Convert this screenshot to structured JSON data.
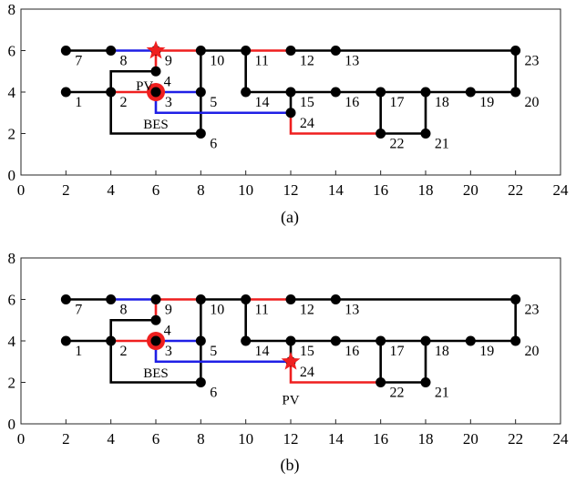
{
  "colors": {
    "black": "#000000",
    "blue": "#1f1fe6",
    "red": "#ef1f1f",
    "node": "#000000",
    "marker": "#ef1f1f"
  },
  "axis": {
    "x_ticks": [
      "0",
      "2",
      "4",
      "6",
      "8",
      "10",
      "12",
      "14",
      "16",
      "18",
      "20",
      "22",
      "24"
    ],
    "y_ticks": [
      "0",
      "2",
      "4",
      "6",
      "8"
    ],
    "xlim": [
      0,
      24
    ],
    "ylim": [
      0,
      8
    ]
  },
  "panels": [
    {
      "caption": "(a)",
      "nodes": [
        {
          "id": "1",
          "x": 2,
          "y": 4,
          "lx": 2.4,
          "ly": 3.55
        },
        {
          "id": "2",
          "x": 4,
          "y": 4,
          "lx": 4.4,
          "ly": 3.55
        },
        {
          "id": "3",
          "x": 6,
          "y": 4,
          "lx": 6.4,
          "ly": 3.55
        },
        {
          "id": "4",
          "x": 6,
          "y": 5,
          "lx": 6.35,
          "ly": 4.55
        },
        {
          "id": "5",
          "x": 8,
          "y": 4,
          "lx": 8.4,
          "ly": 3.55
        },
        {
          "id": "6",
          "x": 8,
          "y": 2,
          "lx": 8.4,
          "ly": 1.55
        },
        {
          "id": "7",
          "x": 2,
          "y": 6,
          "lx": 2.4,
          "ly": 5.55
        },
        {
          "id": "8",
          "x": 4,
          "y": 6,
          "lx": 4.4,
          "ly": 5.55
        },
        {
          "id": "9",
          "x": 6,
          "y": 6,
          "lx": 6.4,
          "ly": 5.55
        },
        {
          "id": "10",
          "x": 8,
          "y": 6,
          "lx": 8.4,
          "ly": 5.55
        },
        {
          "id": "11",
          "x": 10,
          "y": 6,
          "lx": 10.4,
          "ly": 5.55
        },
        {
          "id": "12",
          "x": 12,
          "y": 6,
          "lx": 12.4,
          "ly": 5.55
        },
        {
          "id": "13",
          "x": 14,
          "y": 6,
          "lx": 14.4,
          "ly": 5.55
        },
        {
          "id": "14",
          "x": 10,
          "y": 4,
          "lx": 10.4,
          "ly": 3.55
        },
        {
          "id": "15",
          "x": 12,
          "y": 4,
          "lx": 12.4,
          "ly": 3.55
        },
        {
          "id": "16",
          "x": 14,
          "y": 4,
          "lx": 14.4,
          "ly": 3.55
        },
        {
          "id": "17",
          "x": 16,
          "y": 4,
          "lx": 16.4,
          "ly": 3.55
        },
        {
          "id": "18",
          "x": 18,
          "y": 4,
          "lx": 18.4,
          "ly": 3.55
        },
        {
          "id": "19",
          "x": 20,
          "y": 4,
          "lx": 20.4,
          "ly": 3.55
        },
        {
          "id": "20",
          "x": 22,
          "y": 4,
          "lx": 22.4,
          "ly": 3.55
        },
        {
          "id": "21",
          "x": 18,
          "y": 2,
          "lx": 18.4,
          "ly": 1.55
        },
        {
          "id": "22",
          "x": 16,
          "y": 2,
          "lx": 16.4,
          "ly": 1.55
        },
        {
          "id": "23",
          "x": 22,
          "y": 6,
          "lx": 22.4,
          "ly": 5.55
        },
        {
          "id": "24",
          "x": 12,
          "y": 3,
          "lx": 12.4,
          "ly": 2.55
        }
      ],
      "edges": [
        {
          "color": "black",
          "pts": [
            [
              2,
              6
            ],
            [
              4,
              6
            ]
          ]
        },
        {
          "color": "blue",
          "pts": [
            [
              4,
              6
            ],
            [
              6,
              6
            ]
          ]
        },
        {
          "color": "red",
          "pts": [
            [
              6,
              6
            ],
            [
              8,
              6
            ]
          ]
        },
        {
          "color": "black",
          "pts": [
            [
              8,
              6
            ],
            [
              10,
              6
            ]
          ]
        },
        {
          "color": "red",
          "pts": [
            [
              10,
              6
            ],
            [
              12,
              6
            ]
          ]
        },
        {
          "color": "black",
          "pts": [
            [
              12,
              6
            ],
            [
              22,
              6
            ]
          ]
        },
        {
          "color": "black",
          "pts": [
            [
              22,
              6
            ],
            [
              22,
              4
            ]
          ]
        },
        {
          "color": "black",
          "pts": [
            [
              2,
              4
            ],
            [
              4,
              4
            ]
          ]
        },
        {
          "color": "red",
          "pts": [
            [
              4,
              4
            ],
            [
              6,
              4
            ]
          ]
        },
        {
          "color": "blue",
          "pts": [
            [
              6,
              4
            ],
            [
              8,
              4
            ]
          ]
        },
        {
          "color": "black",
          "pts": [
            [
              4,
              4
            ],
            [
              4,
              5
            ],
            [
              6,
              5
            ]
          ]
        },
        {
          "color": "red",
          "pts": [
            [
              6,
              5
            ],
            [
              6,
              6
            ]
          ]
        },
        {
          "color": "black",
          "pts": [
            [
              4,
              4
            ],
            [
              4,
              2
            ],
            [
              8,
              2
            ]
          ]
        },
        {
          "color": "black",
          "pts": [
            [
              8,
              2
            ],
            [
              8,
              6
            ]
          ]
        },
        {
          "color": "blue",
          "pts": [
            [
              6,
              4
            ],
            [
              6,
              3
            ],
            [
              12,
              3
            ]
          ]
        },
        {
          "color": "black",
          "pts": [
            [
              12,
              3
            ],
            [
              12,
              4
            ]
          ]
        },
        {
          "color": "red",
          "pts": [
            [
              12,
              3
            ],
            [
              12,
              2
            ],
            [
              16,
              2
            ]
          ]
        },
        {
          "color": "black",
          "pts": [
            [
              10,
              6
            ],
            [
              10,
              4
            ],
            [
              22,
              4
            ]
          ]
        },
        {
          "color": "black",
          "pts": [
            [
              16,
              4
            ],
            [
              16,
              2
            ]
          ]
        },
        {
          "color": "black",
          "pts": [
            [
              16,
              2
            ],
            [
              18,
              2
            ],
            [
              18,
              4
            ]
          ]
        }
      ],
      "stars": [
        {
          "x": 6,
          "y": 6
        }
      ],
      "big_dots": [
        {
          "x": 6,
          "y": 4
        }
      ],
      "annotations": [
        {
          "text": "PV",
          "x": 5.5,
          "y": 4.35
        },
        {
          "text": "BES",
          "x": 6.0,
          "y": 2.5
        }
      ]
    },
    {
      "caption": "(b)",
      "nodes": [
        {
          "id": "1",
          "x": 2,
          "y": 4,
          "lx": 2.4,
          "ly": 3.55
        },
        {
          "id": "2",
          "x": 4,
          "y": 4,
          "lx": 4.4,
          "ly": 3.55
        },
        {
          "id": "3",
          "x": 6,
          "y": 4,
          "lx": 6.4,
          "ly": 3.55
        },
        {
          "id": "4",
          "x": 6,
          "y": 5,
          "lx": 6.35,
          "ly": 4.55
        },
        {
          "id": "5",
          "x": 8,
          "y": 4,
          "lx": 8.4,
          "ly": 3.55
        },
        {
          "id": "6",
          "x": 8,
          "y": 2,
          "lx": 8.4,
          "ly": 1.55
        },
        {
          "id": "7",
          "x": 2,
          "y": 6,
          "lx": 2.4,
          "ly": 5.55
        },
        {
          "id": "8",
          "x": 4,
          "y": 6,
          "lx": 4.4,
          "ly": 5.55
        },
        {
          "id": "9",
          "x": 6,
          "y": 6,
          "lx": 6.4,
          "ly": 5.55
        },
        {
          "id": "10",
          "x": 8,
          "y": 6,
          "lx": 8.4,
          "ly": 5.55
        },
        {
          "id": "11",
          "x": 10,
          "y": 6,
          "lx": 10.4,
          "ly": 5.55
        },
        {
          "id": "12",
          "x": 12,
          "y": 6,
          "lx": 12.4,
          "ly": 5.55
        },
        {
          "id": "13",
          "x": 14,
          "y": 6,
          "lx": 14.4,
          "ly": 5.55
        },
        {
          "id": "14",
          "x": 10,
          "y": 4,
          "lx": 10.4,
          "ly": 3.55
        },
        {
          "id": "15",
          "x": 12,
          "y": 4,
          "lx": 12.4,
          "ly": 3.55
        },
        {
          "id": "16",
          "x": 14,
          "y": 4,
          "lx": 14.4,
          "ly": 3.55
        },
        {
          "id": "17",
          "x": 16,
          "y": 4,
          "lx": 16.4,
          "ly": 3.55
        },
        {
          "id": "18",
          "x": 18,
          "y": 4,
          "lx": 18.4,
          "ly": 3.55
        },
        {
          "id": "19",
          "x": 20,
          "y": 4,
          "lx": 20.4,
          "ly": 3.55
        },
        {
          "id": "20",
          "x": 22,
          "y": 4,
          "lx": 22.4,
          "ly": 3.55
        },
        {
          "id": "21",
          "x": 18,
          "y": 2,
          "lx": 18.4,
          "ly": 1.55
        },
        {
          "id": "22",
          "x": 16,
          "y": 2,
          "lx": 16.4,
          "ly": 1.55
        },
        {
          "id": "23",
          "x": 22,
          "y": 6,
          "lx": 22.4,
          "ly": 5.55
        },
        {
          "id": "24",
          "x": 12,
          "y": 3,
          "lx": 12.4,
          "ly": 2.55
        }
      ],
      "edges": [
        {
          "color": "black",
          "pts": [
            [
              2,
              6
            ],
            [
              4,
              6
            ]
          ]
        },
        {
          "color": "blue",
          "pts": [
            [
              4,
              6
            ],
            [
              6,
              6
            ]
          ]
        },
        {
          "color": "red",
          "pts": [
            [
              6,
              6
            ],
            [
              8,
              6
            ]
          ]
        },
        {
          "color": "black",
          "pts": [
            [
              8,
              6
            ],
            [
              10,
              6
            ]
          ]
        },
        {
          "color": "red",
          "pts": [
            [
              10,
              6
            ],
            [
              12,
              6
            ]
          ]
        },
        {
          "color": "black",
          "pts": [
            [
              12,
              6
            ],
            [
              22,
              6
            ]
          ]
        },
        {
          "color": "black",
          "pts": [
            [
              22,
              6
            ],
            [
              22,
              4
            ]
          ]
        },
        {
          "color": "black",
          "pts": [
            [
              2,
              4
            ],
            [
              4,
              4
            ]
          ]
        },
        {
          "color": "red",
          "pts": [
            [
              4,
              4
            ],
            [
              6,
              4
            ]
          ]
        },
        {
          "color": "blue",
          "pts": [
            [
              6,
              4
            ],
            [
              8,
              4
            ]
          ]
        },
        {
          "color": "black",
          "pts": [
            [
              4,
              4
            ],
            [
              4,
              5
            ],
            [
              6,
              5
            ]
          ]
        },
        {
          "color": "red",
          "pts": [
            [
              6,
              5
            ],
            [
              6,
              6
            ]
          ]
        },
        {
          "color": "black",
          "pts": [
            [
              4,
              4
            ],
            [
              4,
              2
            ],
            [
              8,
              2
            ]
          ]
        },
        {
          "color": "black",
          "pts": [
            [
              8,
              2
            ],
            [
              8,
              6
            ]
          ]
        },
        {
          "color": "blue",
          "pts": [
            [
              6,
              4
            ],
            [
              6,
              3
            ],
            [
              12,
              3
            ]
          ]
        },
        {
          "color": "black",
          "pts": [
            [
              12,
              3
            ],
            [
              12,
              4
            ]
          ]
        },
        {
          "color": "red",
          "pts": [
            [
              12,
              3
            ],
            [
              12,
              2
            ],
            [
              16,
              2
            ]
          ]
        },
        {
          "color": "black",
          "pts": [
            [
              10,
              6
            ],
            [
              10,
              4
            ],
            [
              22,
              4
            ]
          ]
        },
        {
          "color": "black",
          "pts": [
            [
              16,
              4
            ],
            [
              16,
              2
            ]
          ]
        },
        {
          "color": "black",
          "pts": [
            [
              16,
              2
            ],
            [
              18,
              2
            ],
            [
              18,
              4
            ]
          ]
        }
      ],
      "stars": [
        {
          "x": 12,
          "y": 3
        }
      ],
      "big_dots": [
        {
          "x": 6,
          "y": 4
        }
      ],
      "annotations": [
        {
          "text": "BES",
          "x": 6.0,
          "y": 2.5
        },
        {
          "text": "PV",
          "x": 12.0,
          "y": 1.2
        }
      ]
    }
  ]
}
